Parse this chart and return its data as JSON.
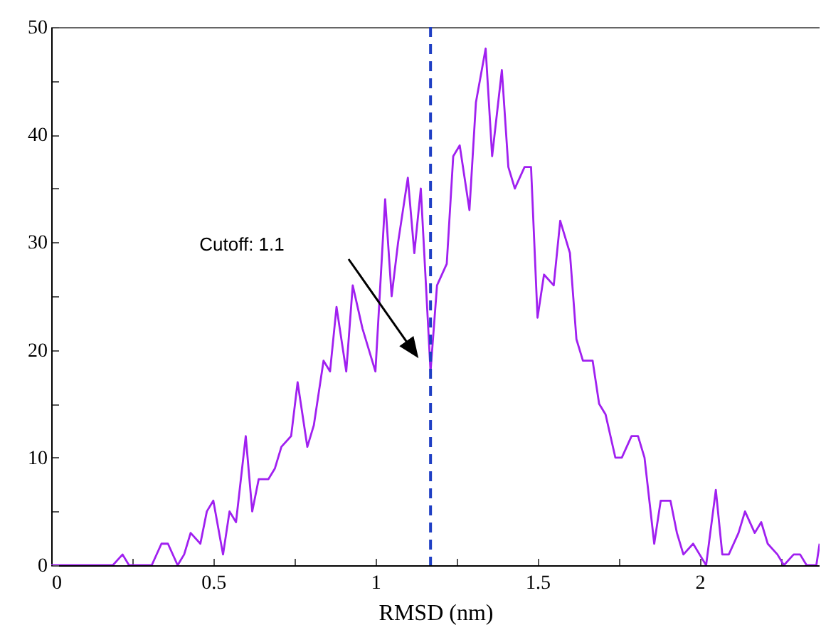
{
  "chart_data": {
    "type": "line",
    "xlabel": "RMSD (nm)",
    "xlim": [
      0,
      2.37
    ],
    "ylim": [
      0,
      50
    ],
    "xticks": [
      0,
      {
        "value": 0.25,
        "label": null
      },
      0.5,
      {
        "value": 0.75,
        "label": null
      },
      1,
      {
        "value": 1.25,
        "label": null
      },
      1.5,
      {
        "value": 1.75,
        "label": null
      },
      2,
      {
        "value": 2.25,
        "label": null
      }
    ],
    "yticks": [
      0,
      {
        "value": 5,
        "label": null
      },
      10,
      {
        "value": 15,
        "label": null
      },
      20,
      {
        "value": 25,
        "label": null
      },
      30,
      {
        "value": 35,
        "label": null
      },
      40,
      {
        "value": 45,
        "label": null
      },
      50
    ],
    "grid": false,
    "marker": "none",
    "line_style": "solid",
    "series": [
      {
        "color": "#a020f0",
        "x": [
          0,
          0.19,
          0.22,
          0.24,
          0.31,
          0.34,
          0.36,
          0.39,
          0.41,
          0.43,
          0.46,
          0.48,
          0.5,
          0.53,
          0.55,
          0.57,
          0.6,
          0.62,
          0.64,
          0.67,
          0.69,
          0.71,
          0.74,
          0.76,
          0.79,
          0.81,
          0.84,
          0.86,
          0.88,
          0.91,
          0.93,
          0.96,
          0.98,
          1.0,
          1.03,
          1.05,
          1.07,
          1.1,
          1.12,
          1.14,
          1.17,
          1.19,
          1.22,
          1.24,
          1.26,
          1.29,
          1.31,
          1.34,
          1.36,
          1.39,
          1.41,
          1.43,
          1.46,
          1.48,
          1.5,
          1.52,
          1.55,
          1.57,
          1.6,
          1.62,
          1.64,
          1.67,
          1.69,
          1.71,
          1.74,
          1.76,
          1.79,
          1.81,
          1.83,
          1.86,
          1.88,
          1.91,
          1.93,
          1.95,
          1.98,
          2.0,
          2.02,
          2.05,
          2.07,
          2.09,
          2.12,
          2.14,
          2.17,
          2.19,
          2.21,
          2.24,
          2.26,
          2.29,
          2.31,
          2.33,
          2.36,
          2.37
        ],
        "values": [
          0,
          0,
          1,
          0,
          0,
          2,
          2,
          0,
          1,
          3,
          2,
          5,
          6,
          1,
          5,
          4,
          12,
          5,
          8,
          8,
          9,
          11,
          12,
          17,
          11,
          13,
          19,
          18,
          24,
          18,
          26,
          22,
          20,
          18,
          34,
          25,
          30,
          36,
          29,
          35,
          18,
          26,
          28,
          38,
          39,
          33,
          43,
          48,
          38,
          46,
          37,
          35,
          37,
          37,
          23,
          27,
          26,
          32,
          29,
          21,
          19,
          19,
          15,
          14,
          10,
          10,
          12,
          12,
          10,
          2,
          6,
          6,
          3,
          1,
          2,
          1,
          0,
          7,
          1,
          1,
          3,
          5,
          3,
          4,
          2,
          1,
          0,
          1,
          1,
          0,
          0,
          2
        ]
      }
    ],
    "ref_lines": [
      {
        "axis": "x",
        "value": 1.17,
        "color": "#1f3fc4",
        "line_style": "dashed"
      }
    ],
    "annotations": [
      "Cutoff: 1.1"
    ]
  }
}
